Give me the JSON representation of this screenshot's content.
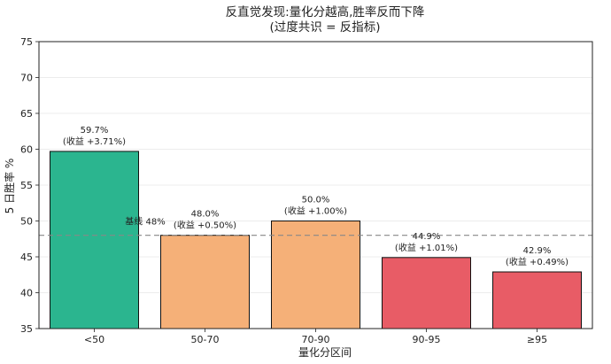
{
  "chart_data": {
    "type": "bar",
    "title": "反直觉发现:量化分越高,胜率反而下降",
    "subtitle": "(过度共识 = 反指标)",
    "xlabel": "量化分区间",
    "ylabel": "5 日胜率 %",
    "ylim": [
      35,
      75
    ],
    "yticks": [
      35,
      40,
      45,
      50,
      55,
      60,
      65,
      70,
      75
    ],
    "grid": "horizontal",
    "categories": [
      "<50",
      "50-70",
      "70-90",
      "90-95",
      "≥95"
    ],
    "values": [
      59.7,
      48.0,
      50.0,
      44.9,
      42.9
    ],
    "value_labels": [
      "59.7%",
      "48.0%",
      "50.0%",
      "44.9%",
      "42.9%"
    ],
    "return_labels": [
      "(收益 +3.71%)",
      "(收益 +0.50%)",
      "(收益 +1.00%)",
      "(收益 +1.01%)",
      "(收益 +0.49%)"
    ],
    "bar_colors": [
      "#2bb58f",
      "#f5b078",
      "#f5b078",
      "#e85c66",
      "#e85c66"
    ],
    "baseline": {
      "value": 48,
      "label": "基线 48%",
      "color": "#888888"
    }
  }
}
